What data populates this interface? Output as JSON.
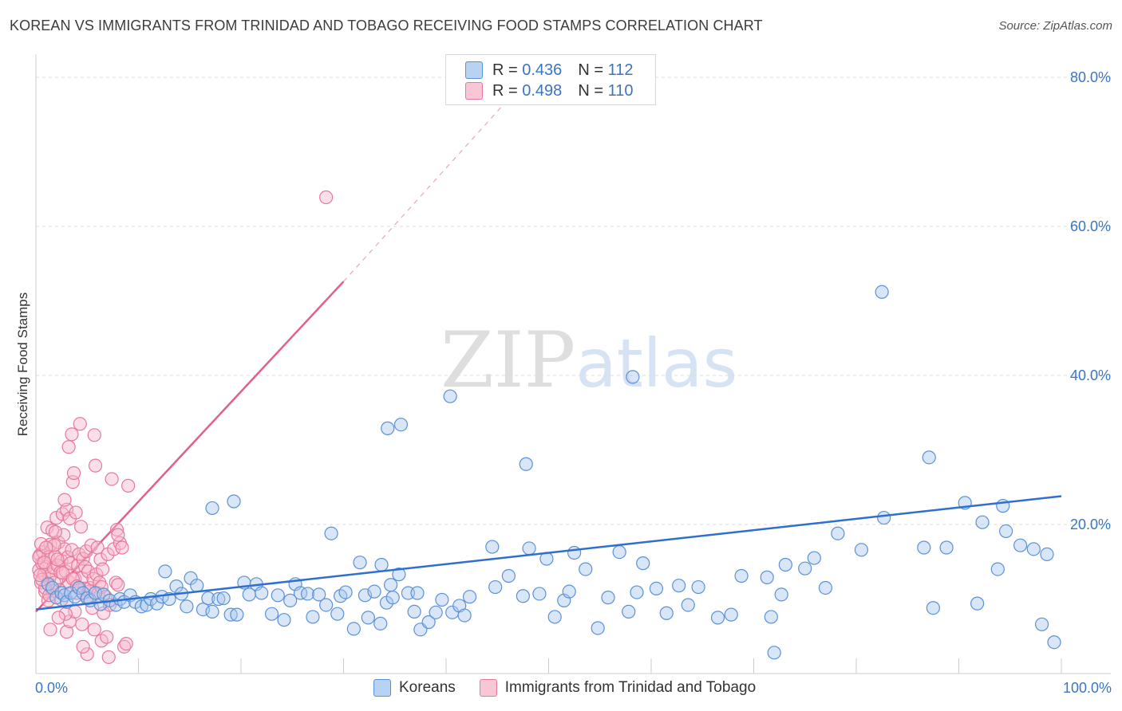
{
  "title": "KOREAN VS IMMIGRANTS FROM TRINIDAD AND TOBAGO RECEIVING FOOD STAMPS CORRELATION CHART",
  "source": "Source: ZipAtlas.com",
  "watermark": {
    "zip": "ZIP",
    "atlas": "atlas"
  },
  "legend": {
    "rows": [
      {
        "r_label": "R =",
        "r_value": "0.436",
        "n_label": "N =",
        "n_value": "112"
      },
      {
        "r_label": "R =",
        "r_value": "0.498",
        "n_label": "N =",
        "n_value": "110"
      }
    ]
  },
  "colors": {
    "blue_fill": "#a9c8f0",
    "blue_stroke": "#5b91d6",
    "blue_line": "#2f6fcf",
    "pink_fill": "#f7b8cc",
    "pink_stroke": "#e8789b",
    "pink_line": "#e0608a",
    "label": "#3a75c4",
    "grid": "#dddddd"
  },
  "chart_data": {
    "type": "scatter",
    "title": "KOREAN VS IMMIGRANTS FROM TRINIDAD AND TOBAGO RECEIVING FOOD STAMPS CORRELATION CHART",
    "xlabel": "",
    "ylabel": "Receiving Food Stamps",
    "xlim": [
      0,
      100
    ],
    "ylim": [
      0,
      80
    ],
    "y_ticks": [
      20,
      40,
      60,
      80
    ],
    "y_tick_labels": [
      "20.0%",
      "40.0%",
      "60.0%",
      "80.0%"
    ],
    "x_tick_labels": [
      "0.0%",
      "100.0%"
    ],
    "grid": "horizontal dashed",
    "legend_position": "bottom-center",
    "series": [
      {
        "name": "Koreans",
        "color": "#5b91d6",
        "trend": {
          "x": [
            0,
            100
          ],
          "y": [
            8.6,
            23.8
          ]
        },
        "points": [
          [
            1.2,
            12.0
          ],
          [
            1.6,
            11.5
          ],
          [
            2.0,
            10.2
          ],
          [
            2.5,
            10.8
          ],
          [
            2.8,
            10.5
          ],
          [
            3.0,
            9.6
          ],
          [
            3.4,
            10.8
          ],
          [
            3.8,
            10.3
          ],
          [
            4.2,
            11.5
          ],
          [
            4.6,
            10.8
          ],
          [
            5.0,
            10.1
          ],
          [
            5.3,
            9.8
          ],
          [
            5.8,
            10.8
          ],
          [
            6.3,
            9.3
          ],
          [
            6.6,
            10.6
          ],
          [
            7.2,
            9.8
          ],
          [
            7.8,
            9.2
          ],
          [
            8.2,
            10.0
          ],
          [
            8.6,
            9.6
          ],
          [
            9.2,
            10.5
          ],
          [
            9.7,
            9.6
          ],
          [
            10.3,
            9.0
          ],
          [
            10.8,
            9.2
          ],
          [
            11.2,
            10.0
          ],
          [
            11.8,
            9.4
          ],
          [
            12.3,
            10.3
          ],
          [
            12.6,
            13.7
          ],
          [
            13.0,
            10.0
          ],
          [
            13.7,
            11.7
          ],
          [
            14.2,
            10.7
          ],
          [
            14.7,
            9.0
          ],
          [
            15.1,
            12.8
          ],
          [
            15.7,
            11.8
          ],
          [
            16.3,
            8.6
          ],
          [
            16.8,
            10.1
          ],
          [
            17.2,
            8.3
          ],
          [
            17.8,
            10.0
          ],
          [
            18.3,
            10.1
          ],
          [
            19.0,
            7.9
          ],
          [
            19.6,
            7.9
          ],
          [
            20.3,
            12.2
          ],
          [
            20.8,
            10.6
          ],
          [
            21.5,
            12.0
          ],
          [
            22.0,
            10.8
          ],
          [
            23.0,
            8.0
          ],
          [
            23.6,
            10.5
          ],
          [
            24.2,
            7.2
          ],
          [
            24.8,
            9.8
          ],
          [
            25.3,
            12.0
          ],
          [
            25.8,
            10.8
          ],
          [
            26.5,
            10.7
          ],
          [
            27.0,
            7.6
          ],
          [
            27.6,
            10.6
          ],
          [
            28.3,
            9.2
          ],
          [
            28.8,
            18.8
          ],
          [
            29.4,
            8.0
          ],
          [
            29.7,
            10.4
          ],
          [
            30.2,
            10.9
          ],
          [
            31.0,
            6.0
          ],
          [
            31.6,
            14.9
          ],
          [
            32.1,
            10.5
          ],
          [
            32.4,
            7.5
          ],
          [
            33.0,
            11.0
          ],
          [
            33.6,
            6.7
          ],
          [
            34.2,
            9.5
          ],
          [
            34.6,
            11.9
          ],
          [
            34.8,
            10.2
          ],
          [
            35.4,
            13.3
          ],
          [
            36.3,
            10.8
          ],
          [
            36.9,
            8.3
          ],
          [
            37.2,
            10.8
          ],
          [
            37.5,
            5.9
          ],
          [
            38.3,
            6.9
          ],
          [
            39.0,
            8.2
          ],
          [
            39.6,
            9.9
          ],
          [
            40.6,
            8.2
          ],
          [
            41.3,
            9.1
          ],
          [
            41.8,
            7.8
          ],
          [
            42.3,
            10.3
          ],
          [
            44.5,
            17.0
          ],
          [
            44.8,
            11.6
          ],
          [
            46.1,
            13.1
          ],
          [
            47.5,
            10.4
          ],
          [
            48.1,
            16.8
          ],
          [
            49.1,
            10.7
          ],
          [
            49.8,
            15.4
          ],
          [
            50.6,
            7.6
          ],
          [
            51.5,
            9.8
          ],
          [
            52.0,
            11.0
          ],
          [
            52.5,
            16.2
          ],
          [
            53.6,
            14.0
          ],
          [
            54.8,
            6.1
          ],
          [
            55.8,
            10.2
          ],
          [
            56.9,
            16.3
          ],
          [
            57.8,
            8.3
          ],
          [
            58.6,
            10.9
          ],
          [
            59.2,
            14.8
          ],
          [
            60.5,
            11.4
          ],
          [
            61.5,
            8.1
          ],
          [
            62.7,
            11.8
          ],
          [
            63.6,
            9.2
          ],
          [
            64.6,
            11.6
          ],
          [
            66.5,
            7.5
          ],
          [
            67.8,
            7.9
          ],
          [
            68.8,
            13.1
          ],
          [
            71.3,
            12.9
          ],
          [
            71.7,
            7.6
          ],
          [
            72.7,
            10.6
          ],
          [
            73.1,
            14.6
          ],
          [
            75.0,
            14.1
          ],
          [
            75.9,
            15.5
          ],
          [
            77.0,
            11.5
          ],
          [
            78.2,
            18.8
          ],
          [
            80.5,
            16.6
          ],
          [
            82.7,
            20.9
          ],
          [
            86.6,
            16.9
          ],
          [
            87.5,
            8.8
          ],
          [
            88.8,
            16.9
          ],
          [
            90.6,
            22.9
          ],
          [
            92.3,
            20.3
          ],
          [
            93.8,
            14.0
          ],
          [
            94.6,
            19.1
          ],
          [
            96.0,
            17.2
          ],
          [
            97.3,
            16.7
          ],
          [
            98.1,
            6.6
          ],
          [
            99.3,
            4.2
          ],
          [
            98.6,
            16.0
          ],
          [
            34.3,
            32.9
          ],
          [
            35.6,
            33.4
          ],
          [
            40.4,
            37.2
          ],
          [
            47.8,
            28.1
          ],
          [
            17.2,
            22.2
          ],
          [
            19.3,
            23.1
          ],
          [
            33.7,
            14.6
          ],
          [
            58.2,
            39.8
          ],
          [
            87.1,
            29.0
          ],
          [
            94.3,
            22.5
          ],
          [
            82.5,
            51.2
          ],
          [
            91.8,
            9.4
          ],
          [
            72.0,
            2.8
          ]
        ]
      },
      {
        "name": "Immigrants from Trinidad and Tobago",
        "color": "#e8789b",
        "trend": {
          "x": [
            0,
            30
          ],
          "y": [
            8.3,
            52.6
          ]
        },
        "trend_extension": {
          "x": [
            30,
            48
          ],
          "y": [
            52.6,
            80
          ]
        },
        "points": [
          [
            0.3,
            13.9
          ],
          [
            0.4,
            15.9
          ],
          [
            0.5,
            12.2
          ],
          [
            0.6,
            14.8
          ],
          [
            0.7,
            16.3
          ],
          [
            0.8,
            13.3
          ],
          [
            0.9,
            11.0
          ],
          [
            1.0,
            14.3
          ],
          [
            1.1,
            19.6
          ],
          [
            1.2,
            15.6
          ],
          [
            1.3,
            12.7
          ],
          [
            1.4,
            17.3
          ],
          [
            1.5,
            13.3
          ],
          [
            1.6,
            19.2
          ],
          [
            1.7,
            14.2
          ],
          [
            1.8,
            12.2
          ],
          [
            1.9,
            15.7
          ],
          [
            2.0,
            20.9
          ],
          [
            2.1,
            14.5
          ],
          [
            2.2,
            17.6
          ],
          [
            2.3,
            11.2
          ],
          [
            2.4,
            13.6
          ],
          [
            2.5,
            15.1
          ],
          [
            2.6,
            21.4
          ],
          [
            2.7,
            18.6
          ],
          [
            2.8,
            16.7
          ],
          [
            2.9,
            13.7
          ],
          [
            3.0,
            22.0
          ],
          [
            3.1,
            15.6
          ],
          [
            3.2,
            12.3
          ],
          [
            3.3,
            20.8
          ],
          [
            3.4,
            14.8
          ],
          [
            3.5,
            16.6
          ],
          [
            3.6,
            25.7
          ],
          [
            3.7,
            26.9
          ],
          [
            3.8,
            12.7
          ],
          [
            3.9,
            21.6
          ],
          [
            4.0,
            10.8
          ],
          [
            4.1,
            14.5
          ],
          [
            4.2,
            16.0
          ],
          [
            4.3,
            33.5
          ],
          [
            4.4,
            19.7
          ],
          [
            4.5,
            12.8
          ],
          [
            4.6,
            15.4
          ],
          [
            4.7,
            11.4
          ],
          [
            4.8,
            14.3
          ],
          [
            4.9,
            16.4
          ],
          [
            5.0,
            10.3
          ],
          [
            5.1,
            13.7
          ],
          [
            5.2,
            11.0
          ],
          [
            5.3,
            11.5
          ],
          [
            5.4,
            17.2
          ],
          [
            5.5,
            8.8
          ],
          [
            5.6,
            12.7
          ],
          [
            5.7,
            32.0
          ],
          [
            5.8,
            27.9
          ],
          [
            5.9,
            13.3
          ],
          [
            6.0,
            16.9
          ],
          [
            6.1,
            10.8
          ],
          [
            6.2,
            12.2
          ],
          [
            6.3,
            15.3
          ],
          [
            6.4,
            11.6
          ],
          [
            6.5,
            14.0
          ],
          [
            6.6,
            8.1
          ],
          [
            6.8,
            10.3
          ],
          [
            7.0,
            16.0
          ],
          [
            7.2,
            9.2
          ],
          [
            7.4,
            26.1
          ],
          [
            7.6,
            16.7
          ],
          [
            7.8,
            12.2
          ],
          [
            8.0,
            11.9
          ],
          [
            8.2,
            17.5
          ],
          [
            8.4,
            16.9
          ],
          [
            8.6,
            3.6
          ],
          [
            8.8,
            4.0
          ],
          [
            3.2,
            30.4
          ],
          [
            3.5,
            32.1
          ],
          [
            2.8,
            23.3
          ],
          [
            1.9,
            19.0
          ],
          [
            2.5,
            9.9
          ],
          [
            1.4,
            5.9
          ],
          [
            3.0,
            5.6
          ],
          [
            3.3,
            7.0
          ],
          [
            4.5,
            6.6
          ],
          [
            5.7,
            5.9
          ],
          [
            6.4,
            4.4
          ],
          [
            6.9,
            4.9
          ],
          [
            7.1,
            2.2
          ],
          [
            5.0,
            2.6
          ],
          [
            4.6,
            3.6
          ],
          [
            3.8,
            8.3
          ],
          [
            2.9,
            8.0
          ],
          [
            2.2,
            7.5
          ],
          [
            1.6,
            11.1
          ],
          [
            1.2,
            9.8
          ],
          [
            0.9,
            11.5
          ],
          [
            0.6,
            12.6
          ],
          [
            0.3,
            15.6
          ],
          [
            0.5,
            17.4
          ],
          [
            1.8,
            17.2
          ],
          [
            2.1,
            15.3
          ],
          [
            2.6,
            13.5
          ],
          [
            3.6,
            12.7
          ],
          [
            4.0,
            11.7
          ],
          [
            1.0,
            16.9
          ],
          [
            1.3,
            10.5
          ],
          [
            0.8,
            14.9
          ],
          [
            0.4,
            13.2
          ],
          [
            7.9,
            19.3
          ],
          [
            9.0,
            25.2
          ],
          [
            28.3,
            63.9
          ],
          [
            8.0,
            18.6
          ]
        ]
      }
    ]
  }
}
